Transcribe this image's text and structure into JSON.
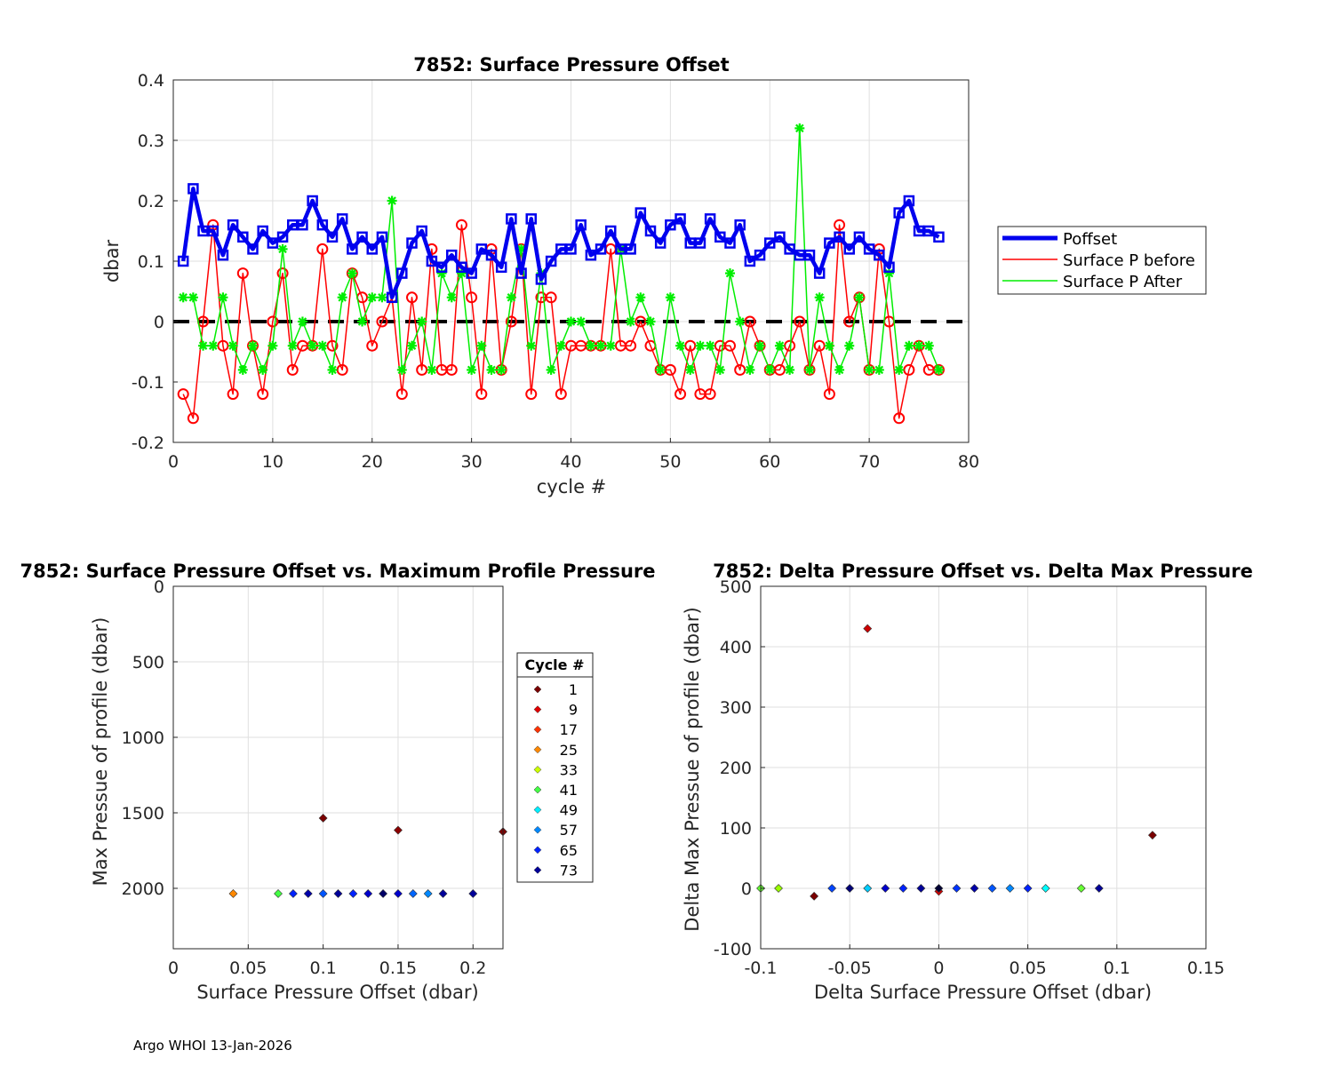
{
  "footer": "Argo WHOI 13-Jan-2026",
  "colors": {
    "poffset": "#0000ee",
    "before": "#ff0000",
    "after": "#00ee00",
    "zero_line": "#000000"
  },
  "chart_data": [
    {
      "id": "top",
      "type": "line",
      "title": "7852: Surface Pressure Offset",
      "xlabel": "cycle #",
      "ylabel": "dbar",
      "xlim": [
        0,
        80
      ],
      "ylim": [
        -0.2,
        0.4
      ],
      "xticks": [
        0,
        10,
        20,
        30,
        40,
        50,
        60,
        70,
        80
      ],
      "yticks": [
        -0.2,
        -0.1,
        0,
        0.1,
        0.2,
        0.3,
        0.4
      ],
      "ytick_labels": [
        "-0.2",
        "-0.1",
        "0",
        "0.1",
        "0.2",
        "0.3",
        "0.4"
      ],
      "grid": true,
      "legend_position": "outside-right",
      "x": [
        1,
        2,
        3,
        4,
        5,
        6,
        7,
        8,
        9,
        10,
        11,
        12,
        13,
        14,
        15,
        16,
        17,
        18,
        19,
        20,
        21,
        22,
        23,
        24,
        25,
        26,
        27,
        28,
        29,
        30,
        31,
        32,
        33,
        34,
        35,
        36,
        37,
        38,
        39,
        40,
        41,
        42,
        43,
        44,
        45,
        46,
        47,
        48,
        49,
        50,
        51,
        52,
        53,
        54,
        55,
        56,
        57,
        58,
        59,
        60,
        61,
        62,
        63,
        64,
        65,
        66,
        67,
        68,
        69,
        70,
        71,
        72,
        73,
        74,
        75,
        76,
        77
      ],
      "series": [
        {
          "name": "Poffset",
          "marker": "square",
          "values": [
            0.1,
            0.22,
            0.15,
            0.15,
            0.11,
            0.16,
            0.14,
            0.12,
            0.15,
            0.13,
            0.14,
            0.16,
            0.16,
            0.2,
            0.16,
            0.14,
            0.17,
            0.12,
            0.14,
            0.12,
            0.14,
            0.04,
            0.08,
            0.13,
            0.15,
            0.1,
            0.09,
            0.11,
            0.09,
            0.08,
            0.12,
            0.11,
            0.09,
            0.17,
            0.08,
            0.17,
            0.07,
            0.1,
            0.12,
            0.12,
            0.16,
            0.11,
            0.12,
            0.15,
            0.12,
            0.12,
            0.18,
            0.15,
            0.13,
            0.16,
            0.17,
            0.13,
            0.13,
            0.17,
            0.14,
            0.13,
            0.16,
            0.1,
            0.11,
            0.13,
            0.14,
            0.12,
            0.11,
            0.11,
            0.08,
            0.13,
            0.14,
            0.12,
            0.14,
            0.12,
            0.11,
            0.09,
            0.18,
            0.2,
            0.15,
            0.15,
            0.14
          ]
        },
        {
          "name": "Surface P before",
          "marker": "diamond",
          "values": [
            -0.12,
            -0.16,
            0.0,
            0.16,
            -0.04,
            -0.12,
            0.08,
            -0.04,
            -0.12,
            0.0,
            0.08,
            -0.08,
            -0.04,
            -0.04,
            0.12,
            -0.04,
            -0.08,
            0.08,
            0.04,
            -0.04,
            0.0,
            0.04,
            -0.12,
            0.04,
            -0.08,
            0.12,
            -0.08,
            -0.08,
            0.16,
            0.04,
            -0.12,
            0.12,
            -0.08,
            0.0,
            0.12,
            -0.12,
            0.04,
            0.04,
            -0.12,
            -0.04,
            -0.04,
            -0.04,
            -0.04,
            0.12,
            -0.04,
            -0.04,
            0.0,
            -0.04,
            -0.08,
            -0.08,
            -0.12,
            -0.04,
            -0.12,
            -0.12,
            -0.04,
            -0.04,
            -0.08,
            0.0,
            -0.04,
            -0.08,
            -0.08,
            -0.04,
            0.0,
            -0.08,
            -0.04,
            -0.12,
            0.16,
            0.0,
            0.04,
            -0.08,
            0.12,
            0.0,
            -0.16,
            -0.08,
            -0.04,
            -0.08,
            -0.08
          ]
        },
        {
          "name": "Surface P After",
          "marker": "asterisk",
          "values": [
            0.04,
            0.04,
            -0.04,
            -0.04,
            0.04,
            -0.04,
            -0.08,
            -0.04,
            -0.08,
            -0.04,
            0.12,
            -0.04,
            0.0,
            -0.04,
            -0.04,
            -0.08,
            0.04,
            0.08,
            0.0,
            0.04,
            0.04,
            0.2,
            -0.08,
            -0.04,
            0.0,
            -0.08,
            0.08,
            0.04,
            0.08,
            -0.08,
            -0.04,
            -0.08,
            -0.08,
            0.04,
            0.12,
            -0.04,
            0.08,
            -0.08,
            -0.04,
            0.0,
            0.0,
            -0.04,
            -0.04,
            -0.04,
            0.12,
            0.0,
            0.04,
            0.0,
            -0.08,
            0.04,
            -0.04,
            -0.08,
            -0.04,
            -0.04,
            -0.08,
            0.08,
            0.0,
            -0.08,
            -0.04,
            -0.08,
            -0.04,
            -0.08,
            0.32,
            -0.08,
            0.04,
            -0.04,
            -0.08,
            -0.04,
            0.04,
            -0.08,
            -0.08,
            0.08,
            -0.08,
            -0.04,
            -0.04,
            -0.04,
            -0.08
          ]
        }
      ]
    },
    {
      "id": "bottom-left",
      "type": "scatter",
      "title": "7852: Surface Pressure Offset vs. Maximum Profile Pressure",
      "xlabel": "Surface Pressure Offset (dbar)",
      "ylabel": "Max Pressue of profile (dbar)",
      "xlim": [
        0,
        0.22
      ],
      "ylim": [
        0,
        2400
      ],
      "y_reversed": true,
      "xticks": [
        0,
        0.05,
        0.1,
        0.15,
        0.2
      ],
      "xtick_labels": [
        "0",
        "0.05",
        "0.1",
        "0.15",
        "0.2"
      ],
      "yticks": [
        0,
        500,
        1000,
        1500,
        2000
      ],
      "grid": true,
      "legend": {
        "title": "Cycle #",
        "entries": [
          {
            "label": "1",
            "color": "#7a0000"
          },
          {
            "label": "9",
            "color": "#e00000"
          },
          {
            "label": "17",
            "color": "#ff3300"
          },
          {
            "label": "25",
            "color": "#ff8800"
          },
          {
            "label": "33",
            "color": "#ccff00"
          },
          {
            "label": "41",
            "color": "#44ff44"
          },
          {
            "label": "49",
            "color": "#00eeff"
          },
          {
            "label": "57",
            "color": "#0088ff"
          },
          {
            "label": "65",
            "color": "#0022ff"
          },
          {
            "label": "73",
            "color": "#000099"
          }
        ]
      },
      "points": [
        {
          "x": 0.1,
          "y": 1535,
          "color": "#7a0000"
        },
        {
          "x": 0.15,
          "y": 1615,
          "color": "#8b0000"
        },
        {
          "x": 0.22,
          "y": 1625,
          "color": "#800000"
        },
        {
          "x": 0.04,
          "y": 2035,
          "color": "#ff8800"
        },
        {
          "x": 0.07,
          "y": 2035,
          "color": "#44ff44"
        },
        {
          "x": 0.08,
          "y": 2035,
          "color": "#0022ff"
        },
        {
          "x": 0.09,
          "y": 2035,
          "color": "#0000aa"
        },
        {
          "x": 0.1,
          "y": 2035,
          "color": "#0055ff"
        },
        {
          "x": 0.11,
          "y": 2035,
          "color": "#000099"
        },
        {
          "x": 0.12,
          "y": 2035,
          "color": "#0022ff"
        },
        {
          "x": 0.13,
          "y": 2035,
          "color": "#0000cc"
        },
        {
          "x": 0.14,
          "y": 2035,
          "color": "#000066"
        },
        {
          "x": 0.15,
          "y": 2035,
          "color": "#0000cc"
        },
        {
          "x": 0.16,
          "y": 2035,
          "color": "#0066ff"
        },
        {
          "x": 0.17,
          "y": 2035,
          "color": "#0088ff"
        },
        {
          "x": 0.18,
          "y": 2035,
          "color": "#000099"
        },
        {
          "x": 0.2,
          "y": 2035,
          "color": "#000099"
        }
      ]
    },
    {
      "id": "bottom-right",
      "type": "scatter",
      "title": "7852: Delta Pressure Offset vs. Delta Max Pressure",
      "xlabel": "Delta Surface Pressure Offset (dbar)",
      "ylabel": "Delta Max Pressue of profile (dbar)",
      "xlim": [
        -0.1,
        0.15
      ],
      "ylim": [
        -100,
        500
      ],
      "xticks": [
        -0.1,
        -0.05,
        0,
        0.05,
        0.1,
        0.15
      ],
      "xtick_labels": [
        "-0.1",
        "-0.05",
        "0",
        "0.05",
        "0.1",
        "0.15"
      ],
      "yticks": [
        -100,
        0,
        100,
        200,
        300,
        400,
        500
      ],
      "grid": true,
      "points": [
        {
          "x": -0.04,
          "y": 430,
          "color": "#cc0000"
        },
        {
          "x": 0.12,
          "y": 88,
          "color": "#7a0000"
        },
        {
          "x": -0.07,
          "y": -13,
          "color": "#7a0000"
        },
        {
          "x": 0.0,
          "y": -5,
          "color": "#cc0000"
        },
        {
          "x": -0.1,
          "y": 0,
          "color": "#66ff33"
        },
        {
          "x": -0.09,
          "y": 0,
          "color": "#99ff00"
        },
        {
          "x": -0.06,
          "y": 0,
          "color": "#0044ff"
        },
        {
          "x": -0.05,
          "y": 0,
          "color": "#000077"
        },
        {
          "x": -0.04,
          "y": 0,
          "color": "#00ccff"
        },
        {
          "x": -0.03,
          "y": 0,
          "color": "#0000cc"
        },
        {
          "x": -0.02,
          "y": 0,
          "color": "#0022ff"
        },
        {
          "x": -0.01,
          "y": 0,
          "color": "#000099"
        },
        {
          "x": 0.0,
          "y": 0,
          "color": "#000033"
        },
        {
          "x": 0.01,
          "y": 0,
          "color": "#0033ff"
        },
        {
          "x": 0.02,
          "y": 0,
          "color": "#0000aa"
        },
        {
          "x": 0.03,
          "y": 0,
          "color": "#0055ff"
        },
        {
          "x": 0.04,
          "y": 0,
          "color": "#0088ff"
        },
        {
          "x": 0.05,
          "y": 0,
          "color": "#0022ff"
        },
        {
          "x": 0.06,
          "y": 0,
          "color": "#00ffff"
        },
        {
          "x": 0.08,
          "y": 0,
          "color": "#66ff33"
        },
        {
          "x": 0.09,
          "y": 0,
          "color": "#000099"
        }
      ]
    }
  ]
}
